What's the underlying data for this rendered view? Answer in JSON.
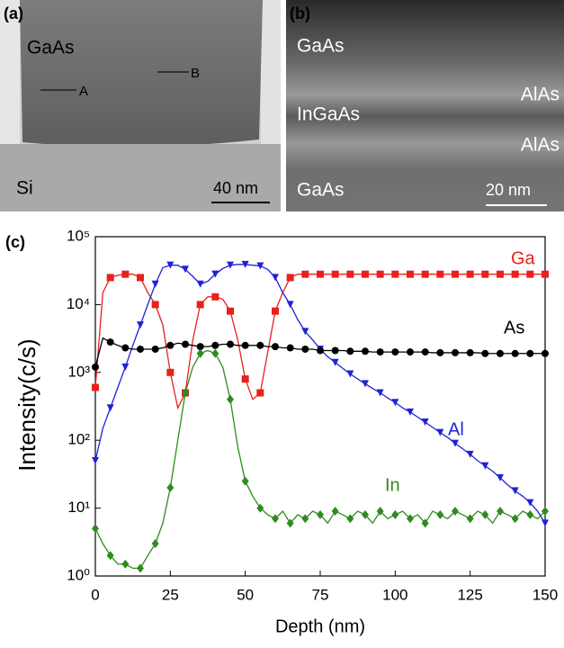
{
  "panels": {
    "a": {
      "tag": "(a)",
      "top_layer": "GaAs",
      "marker_a": "A",
      "marker_b": "B",
      "substrate": "Si",
      "scale": "40 nm"
    },
    "b": {
      "tag": "(b)",
      "layers": [
        "GaAs",
        "AlAs",
        "InGaAs",
        "AlAs",
        "GaAs"
      ],
      "scale": "20 nm"
    }
  },
  "chart_data": {
    "type": "line",
    "panel_tag": "(c)",
    "x_label": "Depth (nm)",
    "y_label": "Intensity(c/s)",
    "log_y": true,
    "xlim": [
      0,
      150
    ],
    "xticks": [
      0,
      25,
      50,
      75,
      100,
      125,
      150
    ],
    "ylim": [
      1,
      100000
    ],
    "yticks": [
      {
        "value": 1,
        "label": "10⁰"
      },
      {
        "value": 10,
        "label": "10¹"
      },
      {
        "value": 100,
        "label": "10²"
      },
      {
        "value": 1000,
        "label": "10³"
      },
      {
        "value": 10000,
        "label": "10⁴"
      },
      {
        "value": 100000,
        "label": "10⁵"
      }
    ],
    "x": [
      0,
      2.5,
      5,
      7.5,
      10,
      12.5,
      15,
      17.5,
      20,
      22.5,
      25,
      27.5,
      30,
      32.5,
      35,
      37.5,
      40,
      42.5,
      45,
      47.5,
      50,
      52.5,
      55,
      57.5,
      60,
      62.5,
      65,
      67.5,
      70,
      72.5,
      75,
      77.5,
      80,
      82.5,
      85,
      87.5,
      90,
      92.5,
      95,
      97.5,
      100,
      102.5,
      105,
      107.5,
      110,
      112.5,
      115,
      117.5,
      120,
      122.5,
      125,
      127.5,
      130,
      132.5,
      135,
      137.5,
      140,
      142.5,
      145,
      147.5,
      150
    ],
    "series": [
      {
        "name": "Ga",
        "color": "#e8211c",
        "marker": "square",
        "values": [
          600,
          15000,
          25000,
          27000,
          28000,
          28000,
          25000,
          15000,
          10000,
          5000,
          1000,
          300,
          500,
          3000,
          10000,
          13000,
          13000,
          12000,
          8000,
          3000,
          800,
          400,
          500,
          2000,
          8000,
          15000,
          25000,
          28000,
          28000,
          28000,
          28000,
          28000,
          28000,
          28000,
          28000,
          28000,
          28000,
          28000,
          28000,
          28000,
          28000,
          28000,
          28000,
          28000,
          28000,
          28000,
          28000,
          28000,
          28000,
          28000,
          28000,
          28000,
          28000,
          28000,
          28000,
          28000,
          28000,
          28000,
          28000,
          28000,
          28000
        ]
      },
      {
        "name": "Al",
        "color": "#1f22d6",
        "marker": "triangle",
        "values": [
          50,
          150,
          300,
          600,
          1200,
          2500,
          5000,
          10000,
          20000,
          35000,
          38000,
          38000,
          33000,
          26000,
          20000,
          22000,
          28000,
          34000,
          38000,
          39000,
          39000,
          38000,
          37000,
          33000,
          25000,
          15000,
          10000,
          6000,
          4000,
          3000,
          2200,
          1700,
          1400,
          1150,
          950,
          800,
          680,
          580,
          500,
          420,
          360,
          300,
          260,
          220,
          185,
          155,
          130,
          110,
          90,
          75,
          62,
          50,
          42,
          35,
          28,
          22,
          18,
          15,
          12,
          9,
          6
        ]
      },
      {
        "name": "As",
        "color": "#000000",
        "marker": "circle",
        "values": [
          1200,
          3200,
          2800,
          2500,
          2300,
          2200,
          2200,
          2200,
          2200,
          2300,
          2500,
          2700,
          2600,
          2500,
          2400,
          2400,
          2500,
          2600,
          2600,
          2500,
          2500,
          2500,
          2500,
          2400,
          2400,
          2300,
          2300,
          2200,
          2200,
          2200,
          2100,
          2100,
          2100,
          2100,
          2050,
          2050,
          2050,
          2000,
          2000,
          2000,
          2000,
          2000,
          2000,
          2000,
          2000,
          1950,
          1950,
          1950,
          1950,
          1950,
          1950,
          1950,
          1900,
          1900,
          1900,
          1900,
          1900,
          1900,
          1900,
          1900,
          1900
        ]
      },
      {
        "name": "In",
        "color": "#2e8b1e",
        "marker": "diamond",
        "values": [
          5,
          3,
          2,
          1.5,
          1.5,
          1.3,
          1.3,
          2,
          3,
          6,
          20,
          100,
          500,
          1200,
          1900,
          2100,
          1900,
          1200,
          400,
          80,
          25,
          15,
          10,
          8,
          7,
          9,
          6,
          8,
          7,
          9,
          8,
          6,
          9,
          8,
          7,
          9,
          8,
          6,
          9,
          7,
          8,
          9,
          7,
          8,
          6,
          9,
          8,
          7,
          9,
          8,
          7,
          9,
          8,
          6,
          9,
          8,
          7,
          9,
          8,
          7,
          9
        ]
      }
    ]
  }
}
